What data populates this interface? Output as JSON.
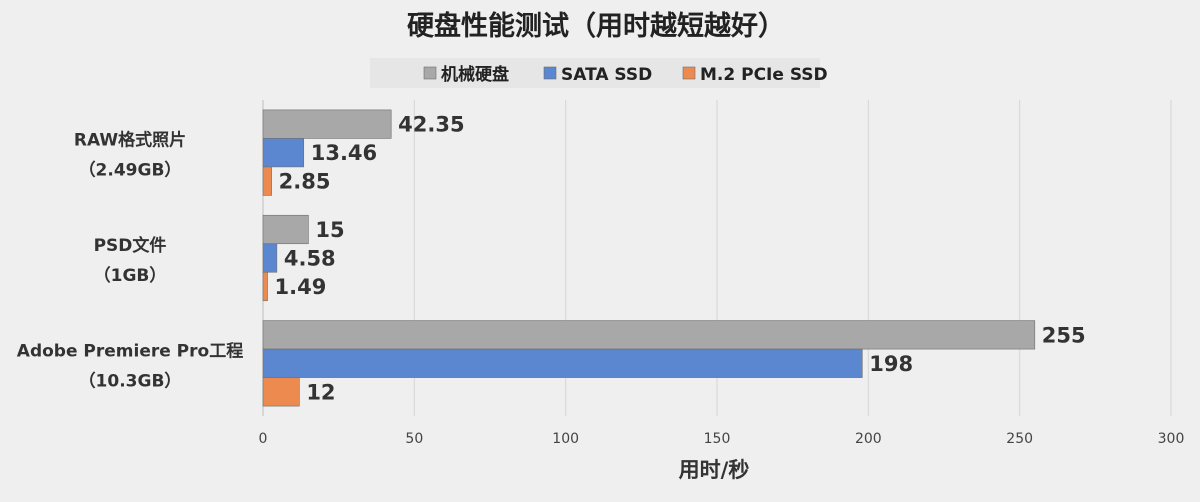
{
  "chart_data": {
    "type": "bar",
    "orientation": "horizontal",
    "title": "硬盘性能测试（用时越短越好）",
    "xlabel": "用时/秒",
    "ylabel": "",
    "xlim": [
      0,
      300
    ],
    "xticks": [
      0,
      50,
      100,
      150,
      200,
      250,
      300
    ],
    "grid": true,
    "legend": "top",
    "categories": [
      [
        "RAW格式照片",
        "（2.49GB）"
      ],
      [
        "PSD文件",
        "（1GB）"
      ],
      [
        "Adobe Premiere Pro工程",
        "（10.3GB）"
      ]
    ],
    "series": [
      {
        "name": "机械硬盘",
        "color": "#a8a8a8",
        "values": [
          42.35,
          15,
          255
        ],
        "labels": [
          "42.35",
          "15",
          "255"
        ]
      },
      {
        "name": "SATA SSD",
        "color": "#5b86d0",
        "values": [
          13.46,
          4.58,
          198
        ],
        "labels": [
          "13.46",
          "4.58",
          "198"
        ]
      },
      {
        "name": "M.2 PCIe SSD",
        "color": "#ec8a4f",
        "values": [
          2.85,
          1.49,
          12
        ],
        "labels": [
          "2.85",
          "1.49",
          "12"
        ]
      }
    ]
  }
}
